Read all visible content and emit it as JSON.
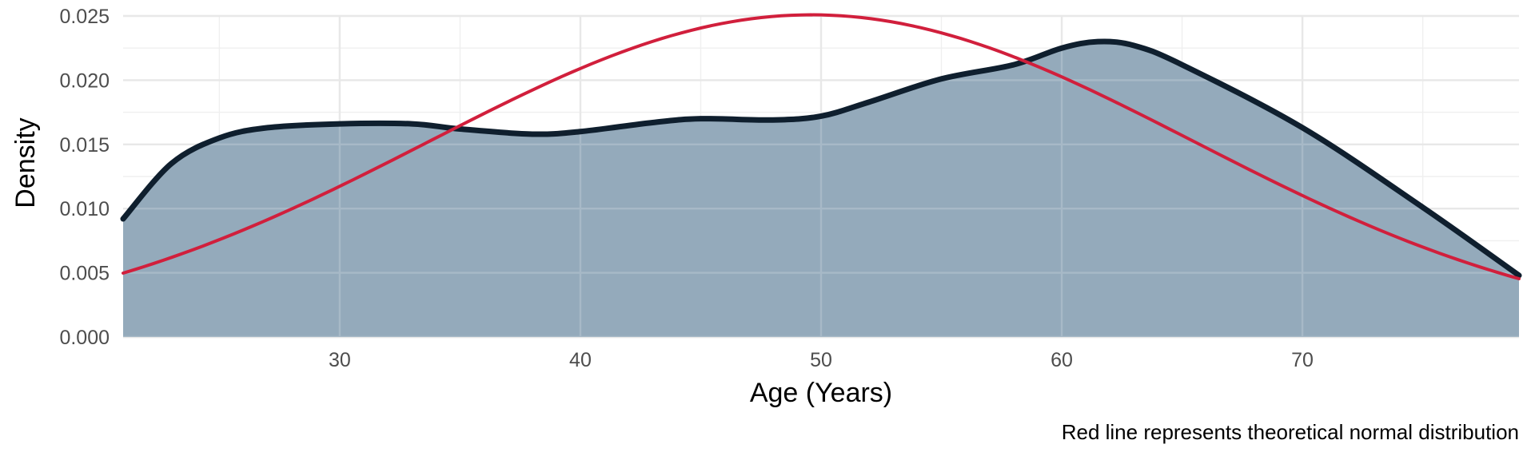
{
  "chart_data": {
    "type": "area",
    "xlabel": "Age (Years)",
    "ylabel": "Density",
    "caption": "Red line represents theoretical normal distribution",
    "xlim": [
      21,
      79
    ],
    "ylim": [
      0,
      0.025
    ],
    "x_ticks": [
      30,
      40,
      50,
      60,
      70
    ],
    "y_ticks": [
      0,
      0.005,
      0.01,
      0.015,
      0.02,
      0.025
    ],
    "y_tick_labels": [
      "0.000",
      "0.005",
      "0.010",
      "0.015",
      "0.020",
      "0.025"
    ],
    "grid": true,
    "series": [
      {
        "kind": "density-area",
        "line_color": "#0f1f2e",
        "fill_color": "#94aabb",
        "x": [
          21,
          23,
          25,
          27,
          30,
          33,
          35,
          38,
          40,
          43,
          45,
          48,
          50,
          52,
          55,
          58,
          60,
          61.5,
          63,
          65,
          70,
          75,
          79
        ],
        "y": [
          0.0092,
          0.0135,
          0.0155,
          0.0163,
          0.0166,
          0.0166,
          0.0162,
          0.0158,
          0.016,
          0.0167,
          0.017,
          0.0169,
          0.0172,
          0.0183,
          0.0201,
          0.0212,
          0.0225,
          0.023,
          0.0227,
          0.0212,
          0.0163,
          0.0101,
          0.0048
        ]
      },
      {
        "kind": "normal-curve",
        "line_color": "#d11f3c",
        "mean": 49.6,
        "sd": 15.9,
        "x_start": 21,
        "x_end": 79
      }
    ]
  }
}
